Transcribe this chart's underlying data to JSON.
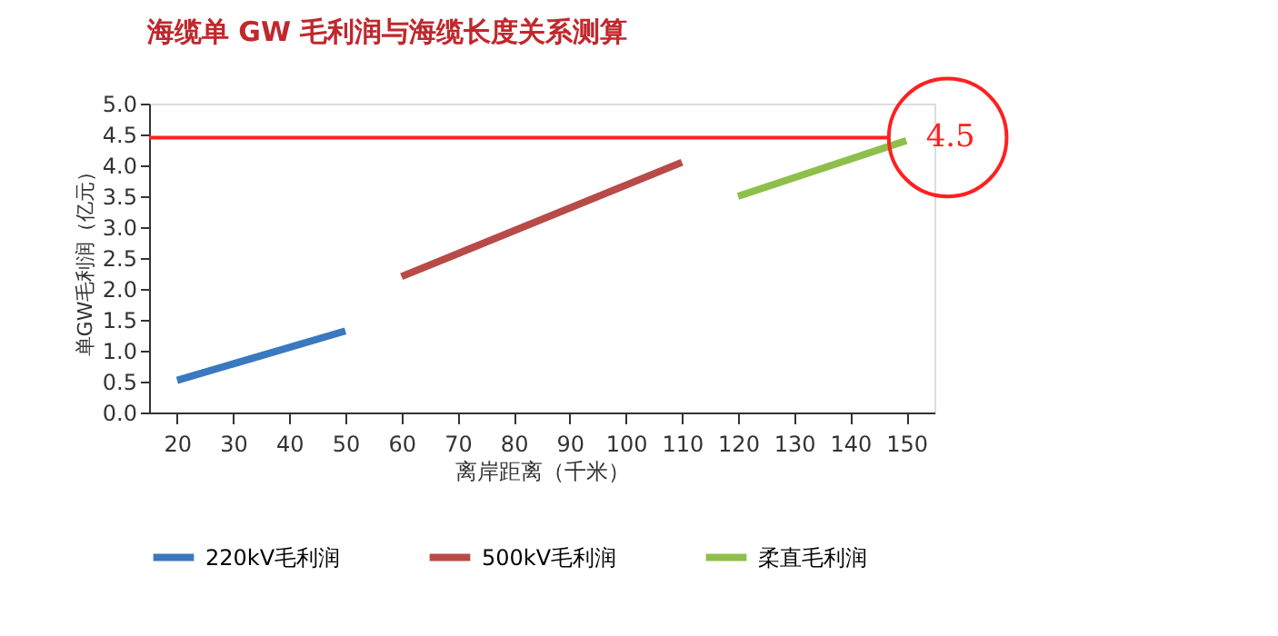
{
  "chart_data": {
    "type": "line",
    "title": "海缆单 GW 毛利润与海缆长度关系测算",
    "xlabel": "离岸距离（千米）",
    "ylabel": "单GW毛利润（亿元）",
    "series": [
      {
        "name": "220kV毛利润",
        "color": "#3a78c0",
        "x": [
          20,
          50
        ],
        "values": [
          0.52,
          1.32
        ]
      },
      {
        "name": "500kV毛利润",
        "color": "#b84a48",
        "x": [
          60,
          110
        ],
        "values": [
          2.2,
          4.05
        ]
      },
      {
        "name": "柔直毛利润",
        "color": "#8dbf4a",
        "x": [
          120,
          150
        ],
        "values": [
          3.5,
          4.4
        ]
      }
    ],
    "xlim": [
      15,
      155
    ],
    "xticks": [
      20,
      30,
      40,
      50,
      60,
      70,
      80,
      90,
      100,
      110,
      120,
      130,
      140,
      150
    ],
    "ylim": [
      0,
      5
    ],
    "yticks": [
      {
        "value": 0,
        "label": "0.0"
      },
      0.5,
      {
        "value": 1,
        "label": "1.0"
      },
      1.5,
      {
        "value": 2,
        "label": "2.0"
      },
      2.5,
      {
        "value": 3,
        "label": "3.0"
      },
      3.5,
      {
        "value": 4,
        "label": "4.0"
      },
      4.5,
      {
        "value": 5,
        "label": "5.0"
      }
    ],
    "ref_lines": [
      {
        "axis": "y",
        "value": 4.45,
        "label": "4.5",
        "color": "#ff2020"
      }
    ],
    "grid": false,
    "legend": "bottom",
    "marker": "none",
    "line_style": "solid"
  }
}
